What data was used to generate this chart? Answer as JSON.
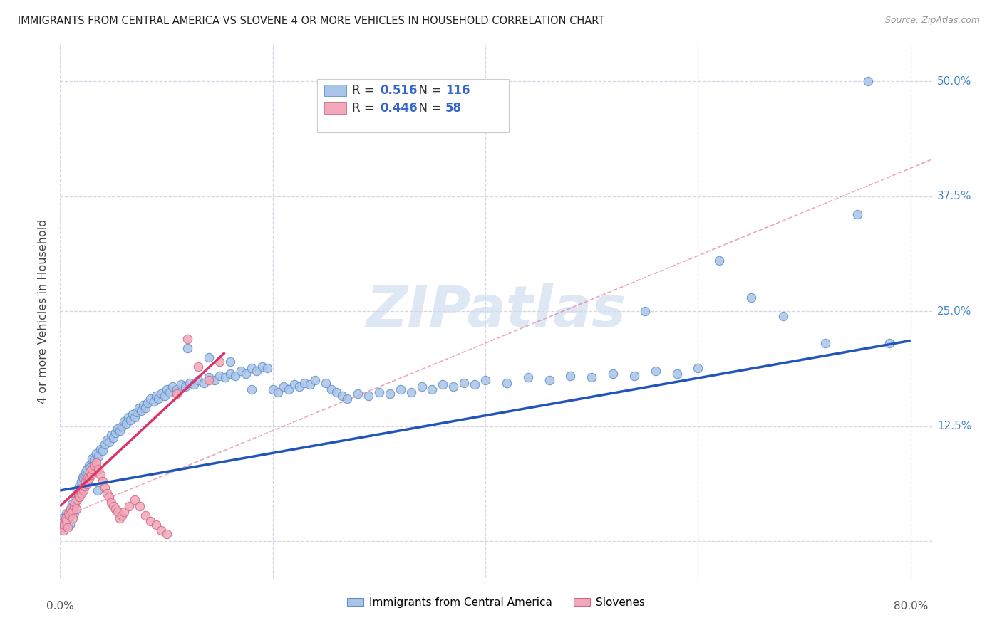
{
  "title": "IMMIGRANTS FROM CENTRAL AMERICA VS SLOVENE 4 OR MORE VEHICLES IN HOUSEHOLD CORRELATION CHART",
  "source": "Source: ZipAtlas.com",
  "ylabel": "4 or more Vehicles in Household",
  "ytick_positions": [
    0.0,
    0.125,
    0.25,
    0.375,
    0.5
  ],
  "ytick_labels": [
    "",
    "12.5%",
    "25.0%",
    "37.5%",
    "50.0%"
  ],
  "xtick_positions": [
    0.0,
    0.2,
    0.4,
    0.6,
    0.8
  ],
  "xlim": [
    0.0,
    0.82
  ],
  "ylim": [
    -0.04,
    0.54
  ],
  "color_blue": "#aac4e8",
  "color_blue_edge": "#6090cc",
  "color_pink": "#f2a8b8",
  "color_pink_edge": "#d06888",
  "line_blue": "#2255bb",
  "line_pink": "#dd3366",
  "line_dashed_color": "#c8c8d8",
  "watermark": "ZIPatlas",
  "watermark_color": "#d0ddf0",
  "blue_line_x": [
    0.0,
    0.8
  ],
  "blue_line_y": [
    0.055,
    0.218
  ],
  "pink_line_x": [
    0.0,
    0.155
  ],
  "pink_line_y": [
    0.038,
    0.205
  ],
  "dashed_line_x": [
    0.0,
    0.82
  ],
  "dashed_line_y": [
    0.025,
    0.415
  ],
  "blue_scatter": [
    [
      0.001,
      0.02
    ],
    [
      0.002,
      0.025
    ],
    [
      0.003,
      0.018
    ],
    [
      0.004,
      0.015
    ],
    [
      0.005,
      0.022
    ],
    [
      0.006,
      0.03
    ],
    [
      0.007,
      0.028
    ],
    [
      0.008,
      0.025
    ],
    [
      0.009,
      0.018
    ],
    [
      0.01,
      0.035
    ],
    [
      0.011,
      0.04
    ],
    [
      0.012,
      0.038
    ],
    [
      0.013,
      0.03
    ],
    [
      0.014,
      0.045
    ],
    [
      0.015,
      0.05
    ],
    [
      0.016,
      0.055
    ],
    [
      0.017,
      0.048
    ],
    [
      0.018,
      0.06
    ],
    [
      0.019,
      0.058
    ],
    [
      0.02,
      0.065
    ],
    [
      0.021,
      0.07
    ],
    [
      0.022,
      0.068
    ],
    [
      0.023,
      0.072
    ],
    [
      0.024,
      0.075
    ],
    [
      0.025,
      0.078
    ],
    [
      0.027,
      0.082
    ],
    [
      0.028,
      0.08
    ],
    [
      0.03,
      0.09
    ],
    [
      0.032,
      0.088
    ],
    [
      0.034,
      0.095
    ],
    [
      0.036,
      0.092
    ],
    [
      0.038,
      0.1
    ],
    [
      0.04,
      0.098
    ],
    [
      0.042,
      0.105
    ],
    [
      0.044,
      0.11
    ],
    [
      0.046,
      0.108
    ],
    [
      0.048,
      0.115
    ],
    [
      0.05,
      0.112
    ],
    [
      0.052,
      0.118
    ],
    [
      0.054,
      0.122
    ],
    [
      0.056,
      0.12
    ],
    [
      0.058,
      0.125
    ],
    [
      0.06,
      0.13
    ],
    [
      0.062,
      0.128
    ],
    [
      0.064,
      0.135
    ],
    [
      0.066,
      0.132
    ],
    [
      0.068,
      0.138
    ],
    [
      0.07,
      0.135
    ],
    [
      0.072,
      0.14
    ],
    [
      0.074,
      0.145
    ],
    [
      0.076,
      0.142
    ],
    [
      0.078,
      0.148
    ],
    [
      0.08,
      0.145
    ],
    [
      0.082,
      0.15
    ],
    [
      0.085,
      0.155
    ],
    [
      0.088,
      0.152
    ],
    [
      0.09,
      0.158
    ],
    [
      0.092,
      0.155
    ],
    [
      0.095,
      0.16
    ],
    [
      0.098,
      0.158
    ],
    [
      0.1,
      0.165
    ],
    [
      0.103,
      0.162
    ],
    [
      0.106,
      0.168
    ],
    [
      0.11,
      0.165
    ],
    [
      0.114,
      0.17
    ],
    [
      0.118,
      0.168
    ],
    [
      0.122,
      0.172
    ],
    [
      0.126,
      0.17
    ],
    [
      0.13,
      0.175
    ],
    [
      0.135,
      0.172
    ],
    [
      0.14,
      0.178
    ],
    [
      0.145,
      0.175
    ],
    [
      0.15,
      0.18
    ],
    [
      0.155,
      0.178
    ],
    [
      0.16,
      0.182
    ],
    [
      0.165,
      0.18
    ],
    [
      0.17,
      0.185
    ],
    [
      0.175,
      0.182
    ],
    [
      0.18,
      0.188
    ],
    [
      0.185,
      0.185
    ],
    [
      0.19,
      0.19
    ],
    [
      0.195,
      0.188
    ],
    [
      0.2,
      0.165
    ],
    [
      0.205,
      0.162
    ],
    [
      0.21,
      0.168
    ],
    [
      0.215,
      0.165
    ],
    [
      0.22,
      0.17
    ],
    [
      0.225,
      0.168
    ],
    [
      0.23,
      0.172
    ],
    [
      0.235,
      0.17
    ],
    [
      0.24,
      0.175
    ],
    [
      0.25,
      0.172
    ],
    [
      0.255,
      0.165
    ],
    [
      0.26,
      0.162
    ],
    [
      0.265,
      0.158
    ],
    [
      0.27,
      0.155
    ],
    [
      0.28,
      0.16
    ],
    [
      0.29,
      0.158
    ],
    [
      0.3,
      0.162
    ],
    [
      0.31,
      0.16
    ],
    [
      0.32,
      0.165
    ],
    [
      0.33,
      0.162
    ],
    [
      0.34,
      0.168
    ],
    [
      0.35,
      0.165
    ],
    [
      0.36,
      0.17
    ],
    [
      0.37,
      0.168
    ],
    [
      0.38,
      0.172
    ],
    [
      0.39,
      0.17
    ],
    [
      0.4,
      0.175
    ],
    [
      0.42,
      0.172
    ],
    [
      0.44,
      0.178
    ],
    [
      0.46,
      0.175
    ],
    [
      0.48,
      0.18
    ],
    [
      0.5,
      0.178
    ],
    [
      0.52,
      0.182
    ],
    [
      0.54,
      0.18
    ],
    [
      0.56,
      0.185
    ],
    [
      0.58,
      0.182
    ],
    [
      0.6,
      0.188
    ],
    [
      0.55,
      0.25
    ],
    [
      0.62,
      0.305
    ],
    [
      0.65,
      0.265
    ],
    [
      0.68,
      0.245
    ],
    [
      0.72,
      0.215
    ],
    [
      0.75,
      0.355
    ],
    [
      0.76,
      0.5
    ],
    [
      0.78,
      0.215
    ],
    [
      0.12,
      0.21
    ],
    [
      0.14,
      0.2
    ],
    [
      0.16,
      0.195
    ],
    [
      0.18,
      0.165
    ],
    [
      0.035,
      0.055
    ]
  ],
  "pink_scatter": [
    [
      0.001,
      0.015
    ],
    [
      0.002,
      0.02
    ],
    [
      0.003,
      0.012
    ],
    [
      0.004,
      0.018
    ],
    [
      0.005,
      0.025
    ],
    [
      0.006,
      0.022
    ],
    [
      0.007,
      0.015
    ],
    [
      0.008,
      0.03
    ],
    [
      0.009,
      0.028
    ],
    [
      0.01,
      0.035
    ],
    [
      0.011,
      0.032
    ],
    [
      0.012,
      0.025
    ],
    [
      0.013,
      0.038
    ],
    [
      0.014,
      0.042
    ],
    [
      0.015,
      0.035
    ],
    [
      0.016,
      0.045
    ],
    [
      0.017,
      0.05
    ],
    [
      0.018,
      0.048
    ],
    [
      0.019,
      0.055
    ],
    [
      0.02,
      0.052
    ],
    [
      0.021,
      0.058
    ],
    [
      0.022,
      0.055
    ],
    [
      0.023,
      0.06
    ],
    [
      0.024,
      0.065
    ],
    [
      0.025,
      0.062
    ],
    [
      0.026,
      0.07
    ],
    [
      0.027,
      0.068
    ],
    [
      0.028,
      0.075
    ],
    [
      0.029,
      0.072
    ],
    [
      0.03,
      0.078
    ],
    [
      0.032,
      0.082
    ],
    [
      0.034,
      0.085
    ],
    [
      0.036,
      0.078
    ],
    [
      0.038,
      0.072
    ],
    [
      0.04,
      0.065
    ],
    [
      0.042,
      0.058
    ],
    [
      0.044,
      0.052
    ],
    [
      0.046,
      0.048
    ],
    [
      0.048,
      0.042
    ],
    [
      0.05,
      0.038
    ],
    [
      0.052,
      0.035
    ],
    [
      0.054,
      0.032
    ],
    [
      0.056,
      0.025
    ],
    [
      0.058,
      0.028
    ],
    [
      0.06,
      0.032
    ],
    [
      0.065,
      0.038
    ],
    [
      0.07,
      0.045
    ],
    [
      0.075,
      0.038
    ],
    [
      0.08,
      0.028
    ],
    [
      0.085,
      0.022
    ],
    [
      0.09,
      0.018
    ],
    [
      0.095,
      0.012
    ],
    [
      0.1,
      0.008
    ],
    [
      0.11,
      0.16
    ],
    [
      0.12,
      0.22
    ],
    [
      0.13,
      0.19
    ],
    [
      0.14,
      0.175
    ],
    [
      0.15,
      0.195
    ]
  ]
}
